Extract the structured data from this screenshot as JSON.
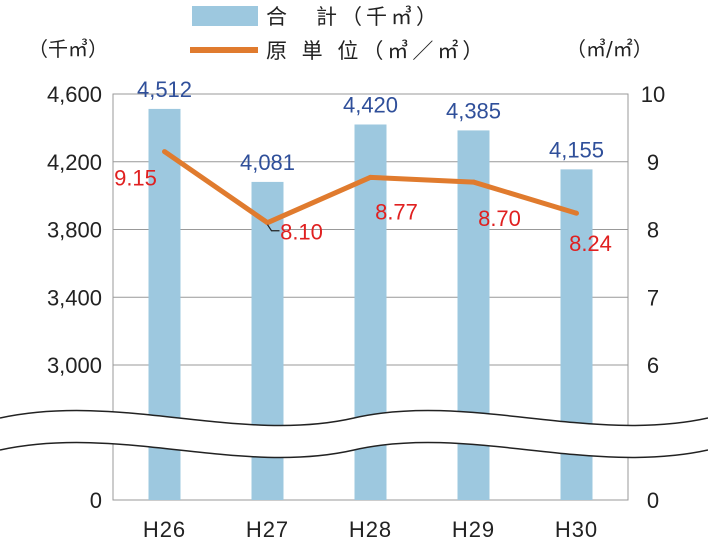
{
  "chart_data": {
    "type": "bar",
    "categories": [
      "H26",
      "H27",
      "H28",
      "H29",
      "H30"
    ],
    "series": [
      {
        "name": "合　計（千㎥）",
        "type": "bar",
        "axis": "left",
        "values": [
          4512,
          4081,
          4420,
          4385,
          4155
        ],
        "labels": [
          "4,512",
          "4,081",
          "4,420",
          "4,385",
          "4,155"
        ],
        "color": "#9dc8df"
      },
      {
        "name": "原 単 位（㎥／㎡）",
        "type": "line",
        "axis": "right",
        "values": [
          9.15,
          8.1,
          8.77,
          8.7,
          8.24
        ],
        "labels": [
          "9.15",
          "8.10",
          "8.77",
          "8.70",
          "8.24"
        ],
        "color": "#e07b2e"
      }
    ],
    "left_axis": {
      "unit": "（千㎥）",
      "ylim": [
        3000,
        4600
      ],
      "ticks": [
        3000,
        3400,
        3800,
        4200,
        4600
      ],
      "tick_labels": [
        "3,000",
        "3,400",
        "3,800",
        "4,200",
        "4,600"
      ],
      "base_label": "0"
    },
    "right_axis": {
      "unit": "（㎥/㎡）",
      "ylim": [
        6,
        10
      ],
      "ticks": [
        6,
        7,
        8,
        9,
        10
      ],
      "tick_labels": [
        "6",
        "7",
        "8",
        "9",
        "10"
      ],
      "base_label": "0"
    },
    "axis_break": true,
    "grid": true,
    "legend": "top"
  }
}
